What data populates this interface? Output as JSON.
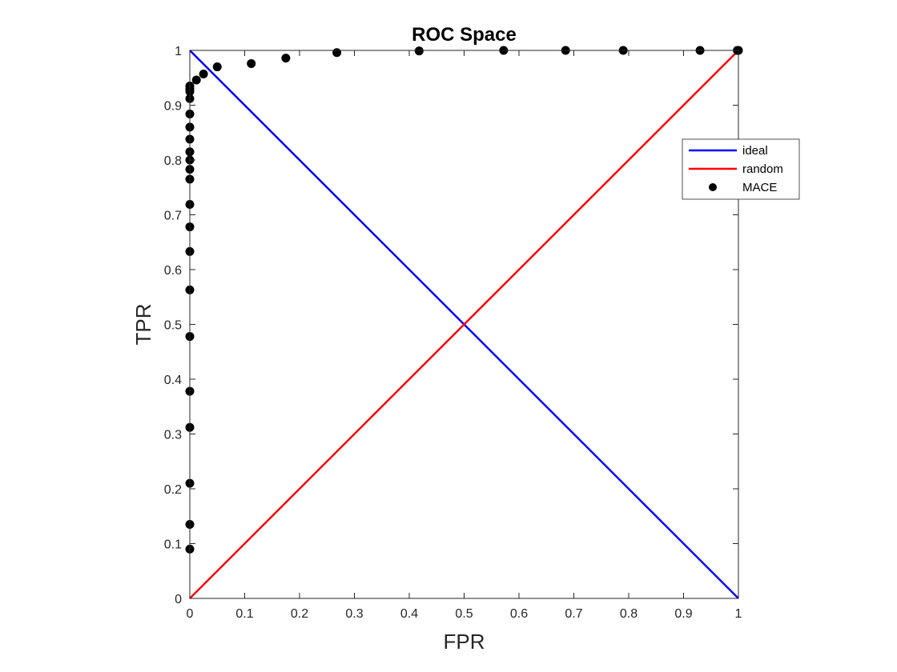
{
  "chart_data": {
    "type": "scatter",
    "title": "ROC Space",
    "xlabel": "FPR",
    "ylabel": "TPR",
    "xlim": [
      0,
      1
    ],
    "ylim": [
      0,
      1
    ],
    "xticks": [
      "0",
      "0.1",
      "0.2",
      "0.3",
      "0.4",
      "0.5",
      "0.6",
      "0.7",
      "0.8",
      "0.9",
      "1"
    ],
    "yticks": [
      "0",
      "0.1",
      "0.2",
      "0.3",
      "0.4",
      "0.5",
      "0.6",
      "0.7",
      "0.8",
      "0.9",
      "1"
    ],
    "tick_values": [
      0,
      0.1,
      0.2,
      0.3,
      0.4,
      0.5,
      0.6,
      0.7,
      0.8,
      0.9,
      1
    ],
    "grid": false,
    "legend_position": "right",
    "series": [
      {
        "name": "ideal",
        "kind": "line",
        "color": "#0000ff",
        "x": [
          0,
          1
        ],
        "y": [
          1,
          0
        ]
      },
      {
        "name": "random",
        "kind": "line",
        "color": "#ff0000",
        "x": [
          0,
          1
        ],
        "y": [
          0,
          1
        ]
      },
      {
        "name": "MACE",
        "kind": "markers",
        "color": "#000000",
        "x": [
          0,
          0,
          0,
          0,
          0,
          0,
          0,
          0,
          0,
          0,
          0,
          0,
          0,
          0,
          0,
          0,
          0,
          0,
          0,
          0,
          0,
          0.012,
          0.025,
          0.05,
          0.112,
          0.175,
          0.268,
          0.418,
          0.572,
          0.685,
          0.79,
          0.93,
          0.998,
          1.0
        ],
        "y": [
          0.09,
          0.135,
          0.21,
          0.312,
          0.378,
          0.478,
          0.563,
          0.633,
          0.678,
          0.719,
          0.765,
          0.783,
          0.8,
          0.815,
          0.838,
          0.86,
          0.884,
          0.912,
          0.925,
          0.93,
          0.935,
          0.946,
          0.957,
          0.97,
          0.976,
          0.986,
          0.996,
          0.999,
          1.0,
          1.0,
          1.0,
          1.0,
          1.0,
          1.0
        ]
      }
    ]
  }
}
